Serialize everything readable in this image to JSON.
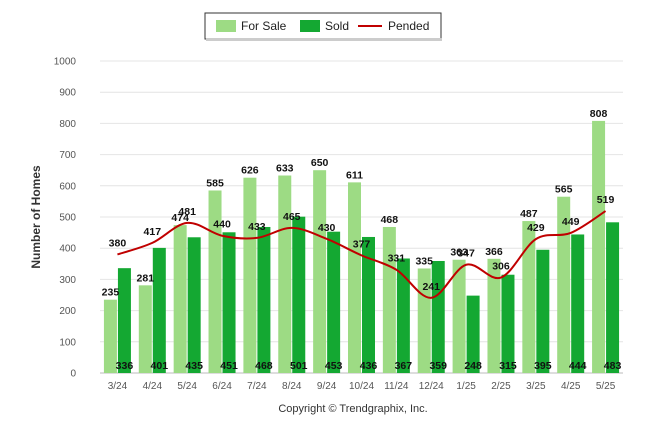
{
  "chart_data": {
    "type": "bar",
    "categories": [
      "3/24",
      "4/24",
      "5/24",
      "6/24",
      "7/24",
      "8/24",
      "9/24",
      "10/24",
      "11/24",
      "12/24",
      "1/25",
      "2/25",
      "3/25",
      "4/25",
      "5/25"
    ],
    "series": [
      {
        "name": "For Sale",
        "kind": "bar",
        "color": "#9ddb84",
        "values": [
          235,
          281,
          474,
          585,
          626,
          633,
          650,
          611,
          468,
          335,
          363,
          366,
          487,
          565,
          808
        ]
      },
      {
        "name": "Sold",
        "kind": "bar",
        "color": "#14a832",
        "values": [
          336,
          401,
          435,
          451,
          468,
          501,
          453,
          436,
          367,
          359,
          248,
          315,
          395,
          444,
          483
        ]
      },
      {
        "name": "Pended",
        "kind": "line",
        "color": "#c00000",
        "values": [
          380,
          417,
          481,
          440,
          433,
          465,
          430,
          377,
          331,
          241,
          347,
          306,
          429,
          449,
          519
        ]
      }
    ],
    "ylabel": "Number of Homes",
    "xlabel": "",
    "ylim": [
      0,
      1000
    ],
    "yticks": [
      0,
      100,
      200,
      300,
      400,
      500,
      600,
      700,
      800,
      900,
      1000
    ],
    "grid": true,
    "legend_position": "top-center"
  },
  "legend": {
    "for_sale": "For Sale",
    "sold": "Sold",
    "pended": "Pended"
  },
  "footer": {
    "credit": "Copyright © Trendgraphix, Inc."
  }
}
